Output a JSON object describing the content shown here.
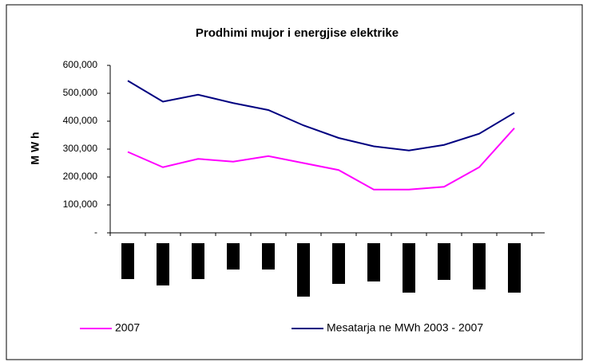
{
  "chart_data": {
    "type": "line",
    "title": "Prodhimi mujor i energjise elektrike",
    "y_label": "M W h",
    "categories": [
      null,
      null,
      null,
      null,
      null,
      null,
      null,
      null,
      null,
      null,
      null,
      null
    ],
    "series": [
      {
        "name": "2007",
        "color": "#ff00ff",
        "values": [
          290000,
          235000,
          265000,
          255000,
          275000,
          250000,
          225000,
          155000,
          155000,
          165000,
          235000,
          375000
        ]
      },
      {
        "name": "Mesatarja ne MWh 2003 - 2007",
        "color": "#000080",
        "values": [
          545000,
          470000,
          495000,
          465000,
          440000,
          385000,
          340000,
          310000,
          295000,
          315000,
          355000,
          430000
        ]
      }
    ],
    "ylim": [
      0,
      600000
    ],
    "yticks": [
      {
        "value": 0,
        "label": "-"
      },
      {
        "value": 100000,
        "label": "100,000"
      },
      {
        "value": 200000,
        "label": "200,000"
      },
      {
        "value": 300000,
        "label": "300,000"
      },
      {
        "value": 400000,
        "label": "400,000"
      },
      {
        "value": 500000,
        "label": "500,000"
      },
      {
        "value": 600000,
        "label": "600,000"
      }
    ],
    "legend": "bottom"
  }
}
